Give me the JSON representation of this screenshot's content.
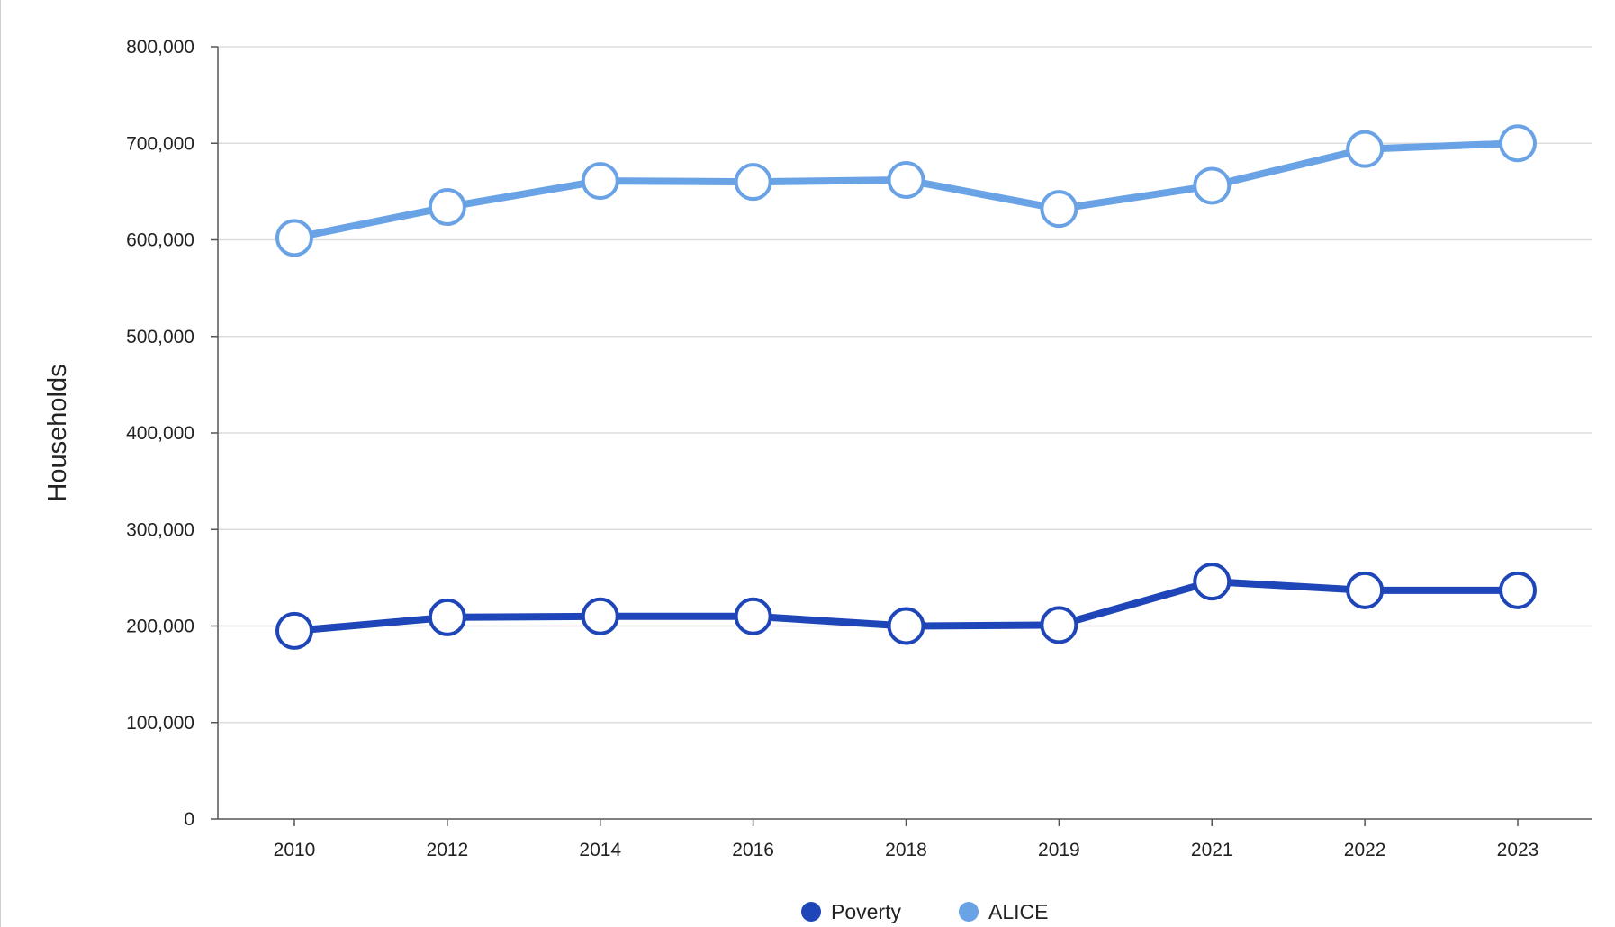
{
  "chart_data": {
    "type": "line",
    "title": "",
    "xlabel": "",
    "ylabel": "Households",
    "categories": [
      "2010",
      "2012",
      "2014",
      "2016",
      "2018",
      "2019",
      "2021",
      "2022",
      "2023"
    ],
    "ylim": [
      0,
      800000
    ],
    "y_ticks": [
      0,
      100000,
      200000,
      300000,
      400000,
      500000,
      600000,
      700000,
      800000
    ],
    "y_tick_labels": [
      "0",
      "100,000",
      "200,000",
      "300,000",
      "400,000",
      "500,000",
      "600,000",
      "700,000",
      "800,000"
    ],
    "grid": true,
    "legend_position": "bottom",
    "series": [
      {
        "name": "Poverty",
        "color": "#1e46b9",
        "values": [
          195000,
          209000,
          210000,
          210000,
          200000,
          201000,
          246000,
          237000,
          237000
        ]
      },
      {
        "name": "ALICE",
        "color": "#6aa2e6",
        "values": [
          602000,
          634000,
          661000,
          660000,
          662000,
          632000,
          656000,
          694000,
          700000
        ]
      }
    ]
  }
}
